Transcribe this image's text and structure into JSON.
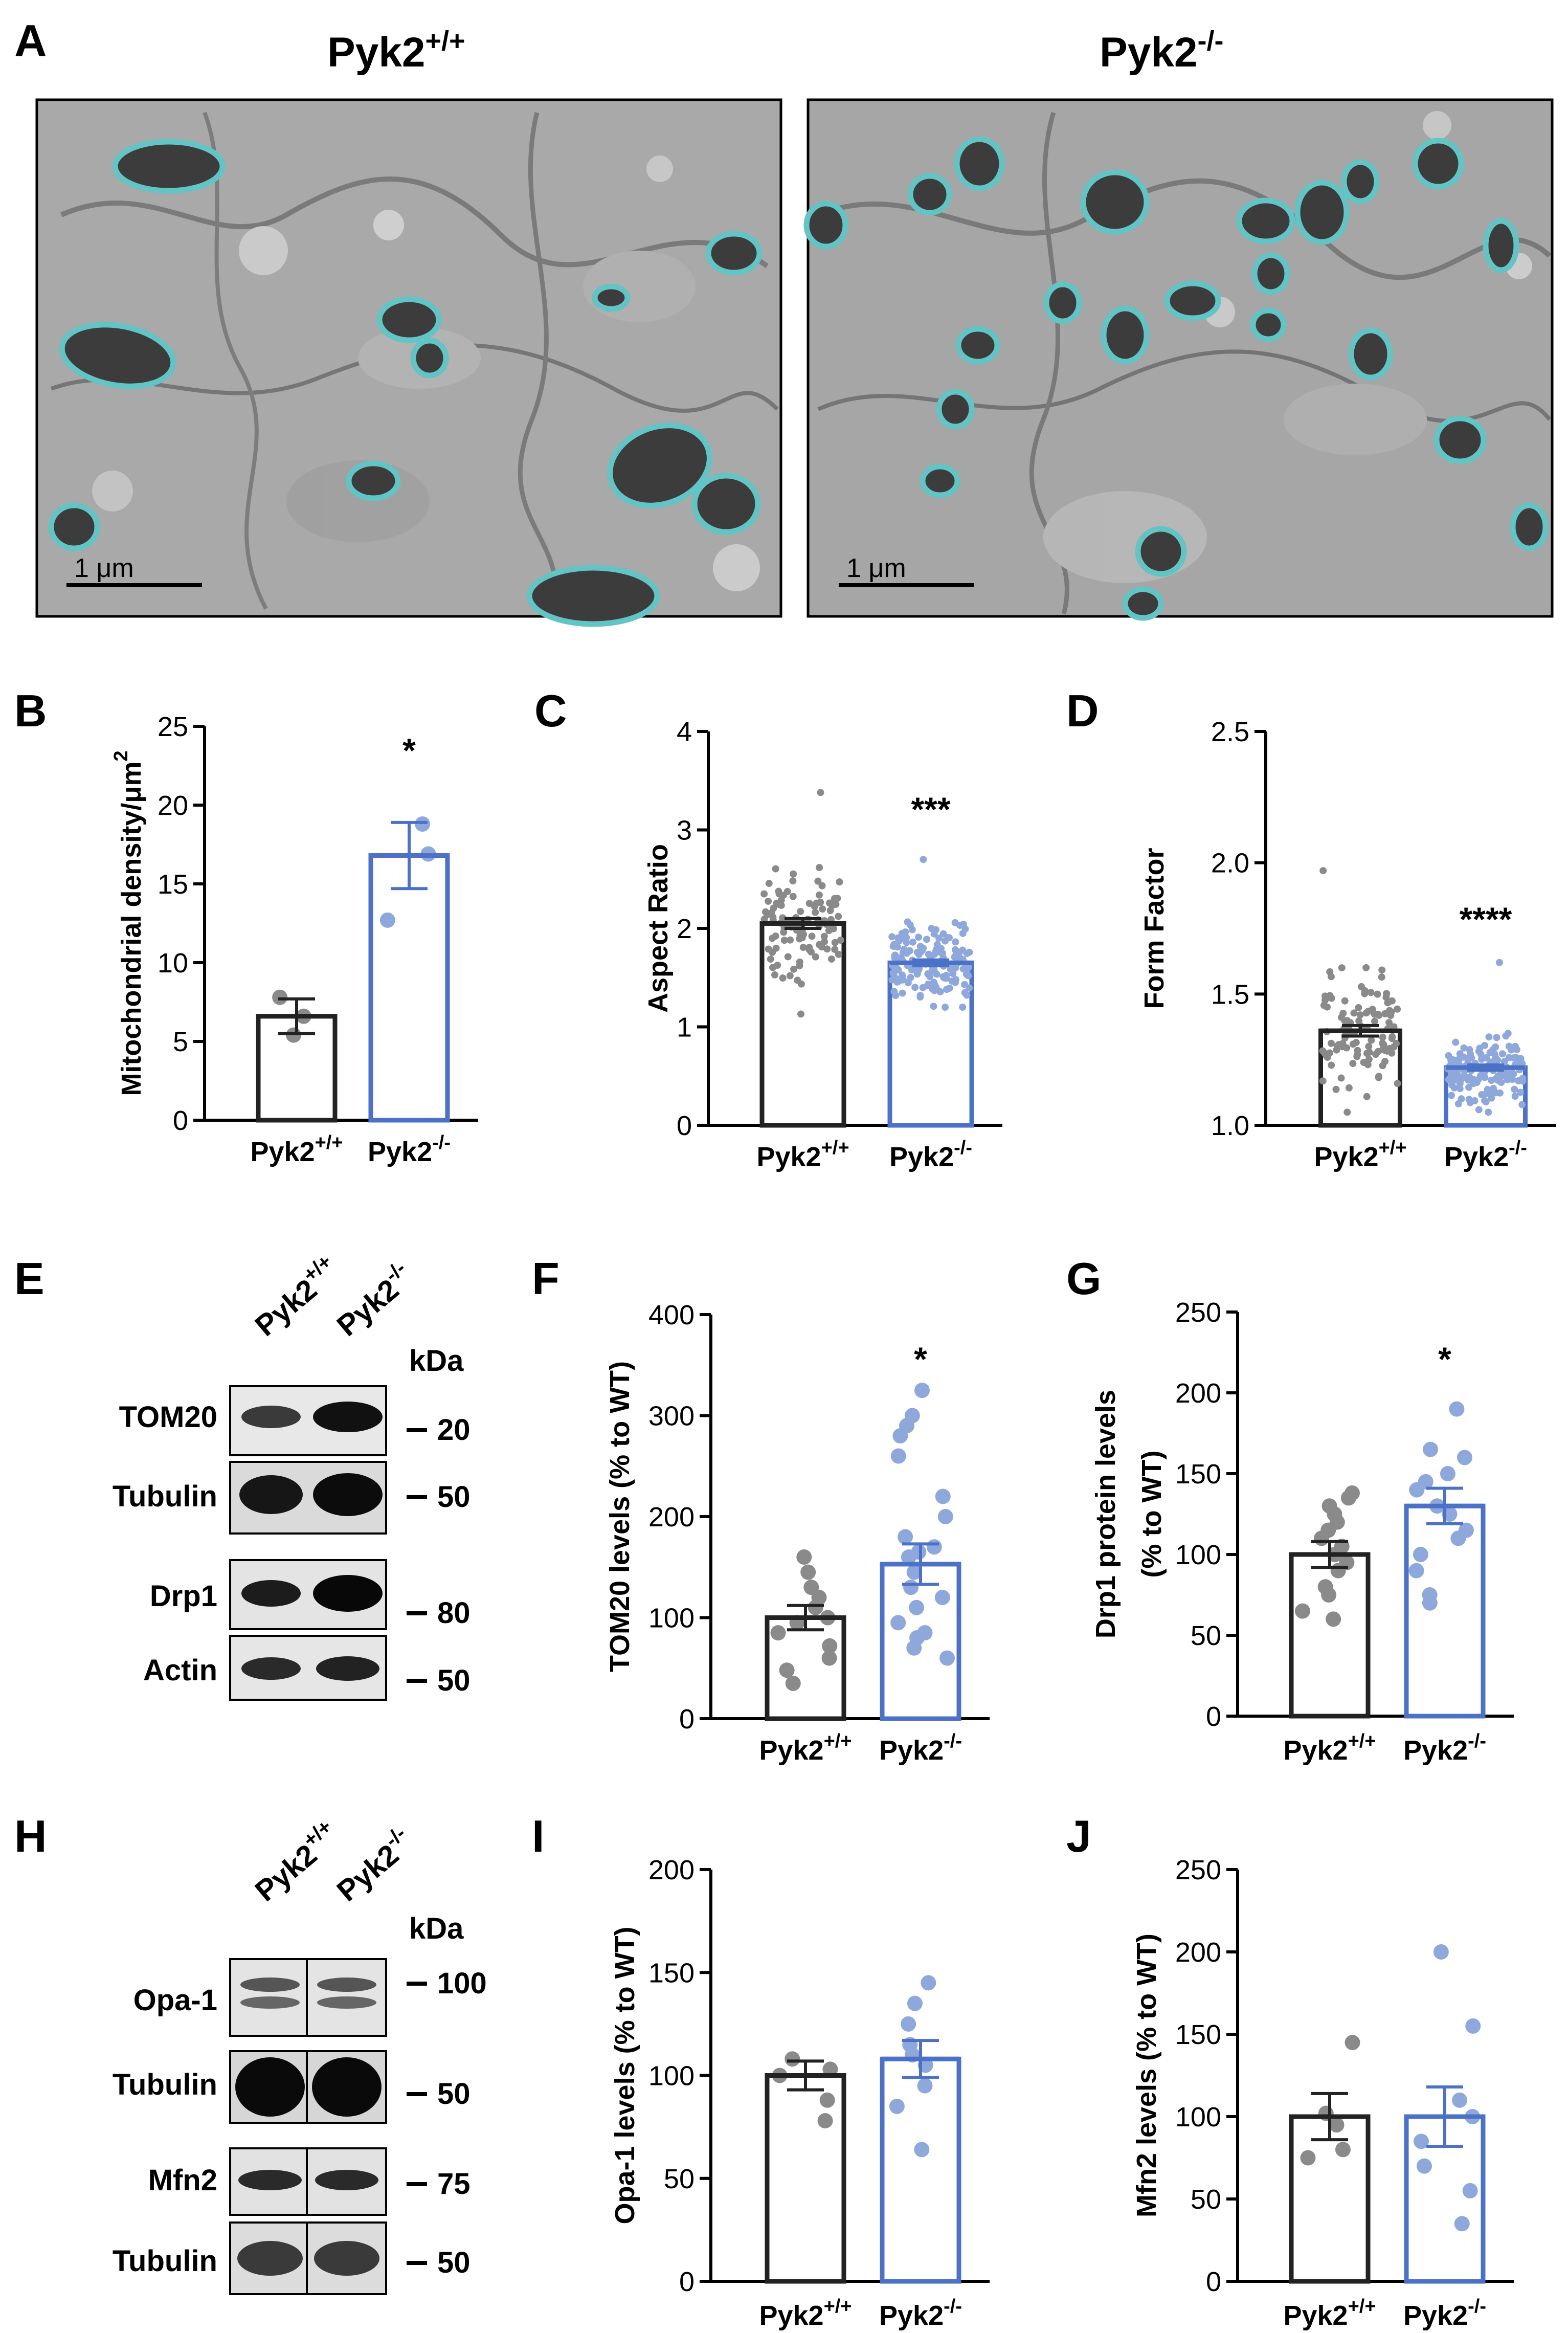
{
  "colors": {
    "wt": "#222222",
    "ko": "#4c72c8",
    "wt_dot": "#8a8a8a",
    "ko_dot": "#8fa8dc",
    "mito_outline": "#62c4c4"
  },
  "panel_a": {
    "label": "A",
    "left_title": "Pyk2",
    "left_sup": "+/+",
    "right_title": "Pyk2",
    "right_sup": "-/-",
    "scale_left": "1 μm",
    "scale_right": "1 μm"
  },
  "western_e": {
    "label": "E",
    "lane_labels": [
      {
        "base": "Pyk2",
        "sup": "+/+"
      },
      {
        "base": "Pyk2",
        "sup": "-/-"
      }
    ],
    "kda_header": "kDa",
    "blots": [
      {
        "name": "TOM20",
        "marker": "20"
      },
      {
        "name": "Tubulin",
        "marker": "50"
      },
      {
        "name": "Drp1",
        "marker": "80"
      },
      {
        "name": "Actin",
        "marker": "50"
      }
    ]
  },
  "western_h": {
    "label": "H",
    "lane_labels": [
      {
        "base": "Pyk2",
        "sup": "+/+"
      },
      {
        "base": "Pyk2",
        "sup": "-/-"
      }
    ],
    "kda_header": "kDa",
    "blots": [
      {
        "name": "Opa-1",
        "marker": "100"
      },
      {
        "name": "Tubulin",
        "marker": "50"
      },
      {
        "name": "Mfn2",
        "marker": "75"
      },
      {
        "name": "Tubulin",
        "marker": "50"
      }
    ]
  },
  "chart_data": [
    {
      "id": "B",
      "type": "bar",
      "ylabel": "Mitochondrial density/μm",
      "ylabel_sup": "2",
      "ylim": [
        0,
        25
      ],
      "yticks": [
        "0",
        "5",
        "10",
        "15",
        "20",
        "25"
      ],
      "categories": [
        {
          "base": "Pyk2",
          "sup": "+/+"
        },
        {
          "base": "Pyk2",
          "sup": "-/-"
        }
      ],
      "values": [
        6.6,
        16.8
      ],
      "sem": [
        1.1,
        2.1
      ],
      "points": [
        [
          5.4,
          6.6,
          7.8
        ],
        [
          12.7,
          16.9,
          18.8
        ]
      ],
      "significance": "*"
    },
    {
      "id": "C",
      "type": "bar",
      "ylabel": "Aspect Ratio",
      "ylim": [
        0,
        4
      ],
      "yticks": [
        "0",
        "1",
        "2",
        "3",
        "4"
      ],
      "categories": [
        {
          "base": "Pyk2",
          "sup": "+/+"
        },
        {
          "base": "Pyk2",
          "sup": "-/-"
        }
      ],
      "values": [
        2.05,
        1.65
      ],
      "sem": [
        0.05,
        0.03
      ],
      "points_summary": [
        {
          "n": 110,
          "min": 1.13,
          "max": 3.38,
          "center": 2.05,
          "spread": 0.38
        },
        {
          "n": 160,
          "min": 1.2,
          "max": 2.7,
          "center": 1.65,
          "spread": 0.25
        }
      ],
      "significance": "***"
    },
    {
      "id": "D",
      "type": "bar",
      "ylabel": "Form Factor",
      "ylim": [
        1.0,
        2.5
      ],
      "yticks": [
        "1.0",
        "1.5",
        "2.0",
        "2.5"
      ],
      "categories": [
        {
          "base": "Pyk2",
          "sup": "+/+"
        },
        {
          "base": "Pyk2",
          "sup": "-/-"
        }
      ],
      "values": [
        1.36,
        1.22
      ],
      "sem": [
        0.02,
        0.01
      ],
      "points_summary": [
        {
          "n": 110,
          "min": 1.05,
          "max": 1.97,
          "center": 1.36,
          "spread": 0.15
        },
        {
          "n": 150,
          "min": 1.05,
          "max": 1.62,
          "center": 1.21,
          "spread": 0.09
        }
      ],
      "significance": "****"
    },
    {
      "id": "F",
      "type": "bar",
      "ylabel": "TOM20 levels  (% to WT)",
      "ylim": [
        0,
        400
      ],
      "yticks": [
        "0",
        "100",
        "200",
        "300",
        "400"
      ],
      "categories": [
        {
          "base": "Pyk2",
          "sup": "+/+"
        },
        {
          "base": "Pyk2",
          "sup": "-/-"
        }
      ],
      "values": [
        100,
        153
      ],
      "sem": [
        12,
        20
      ],
      "points": [
        [
          35,
          48,
          60,
          72,
          85,
          95,
          100,
          110,
          120,
          130,
          145,
          160
        ],
        [
          60,
          70,
          80,
          85,
          95,
          110,
          120,
          130,
          145,
          160,
          165,
          170,
          180,
          200,
          220,
          260,
          280,
          290,
          300,
          325
        ]
      ],
      "significance": "*"
    },
    {
      "id": "G",
      "type": "bar",
      "ylabel": "Drp1 protein levels",
      "ylabel2": "(% to WT)",
      "ylim": [
        0,
        250
      ],
      "yticks": [
        "0",
        "50",
        "100",
        "150",
        "200",
        "250"
      ],
      "categories": [
        {
          "base": "Pyk2",
          "sup": "+/+"
        },
        {
          "base": "Pyk2",
          "sup": "-/-"
        }
      ],
      "values": [
        100,
        130
      ],
      "sem": [
        8,
        11
      ],
      "points": [
        [
          60,
          65,
          75,
          80,
          90,
          95,
          100,
          105,
          110,
          115,
          120,
          125,
          130,
          135,
          138
        ],
        [
          70,
          75,
          90,
          100,
          110,
          115,
          125,
          130,
          140,
          145,
          150,
          160,
          165,
          190
        ]
      ],
      "significance": "*"
    },
    {
      "id": "I",
      "type": "bar",
      "ylabel": "Opa-1 levels (% to WT)",
      "ylim": [
        0,
        200
      ],
      "yticks": [
        "0",
        "50",
        "100",
        "150",
        "200"
      ],
      "categories": [
        {
          "base": "Pyk2",
          "sup": "+/+"
        },
        {
          "base": "Pyk2",
          "sup": "-/-"
        }
      ],
      "values": [
        100,
        108
      ],
      "sem": [
        7,
        9
      ],
      "points": [
        [
          78,
          88,
          100,
          103,
          108
        ],
        [
          64,
          85,
          95,
          105,
          110,
          115,
          125,
          135,
          145
        ]
      ],
      "significance": ""
    },
    {
      "id": "J",
      "type": "bar",
      "ylabel": "Mfn2 levels (% to WT)",
      "ylim": [
        0,
        250
      ],
      "yticks": [
        "0",
        "50",
        "100",
        "150",
        "200",
        "250"
      ],
      "categories": [
        {
          "base": "Pyk2",
          "sup": "+/+"
        },
        {
          "base": "Pyk2",
          "sup": "-/-"
        }
      ],
      "values": [
        100,
        100
      ],
      "sem": [
        14,
        18
      ],
      "points": [
        [
          75,
          80,
          95,
          102,
          145
        ],
        [
          35,
          55,
          70,
          85,
          100,
          110,
          155,
          200
        ]
      ],
      "significance": ""
    }
  ]
}
